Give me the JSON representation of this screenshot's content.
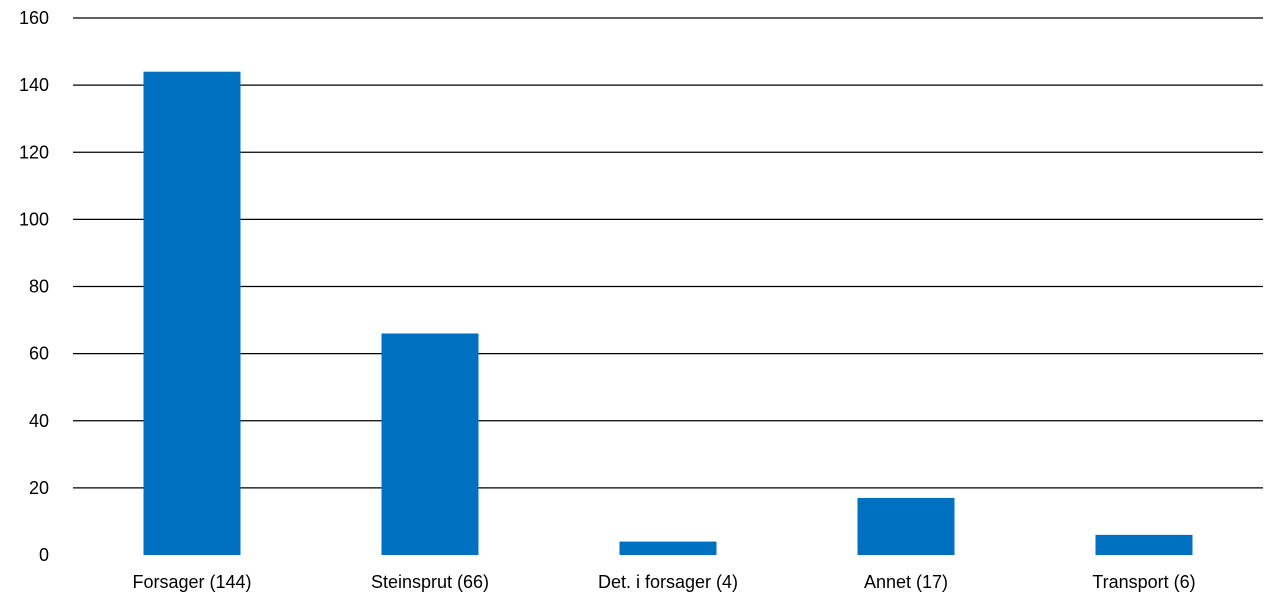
{
  "chart_data": {
    "type": "bar",
    "title": "",
    "xlabel": "",
    "ylabel": "",
    "categories": [
      "Forsager (144)",
      "Steinsprut (66)",
      "Det. i forsager (4)",
      "Annet (17)",
      "Transport (6)"
    ],
    "values": [
      144,
      66,
      4,
      17,
      6
    ],
    "ylim": [
      0,
      160
    ],
    "yticks": [
      0,
      20,
      40,
      60,
      80,
      100,
      120,
      140,
      160
    ],
    "grid": true,
    "legend": "none",
    "bar_color": "#0070C0"
  }
}
